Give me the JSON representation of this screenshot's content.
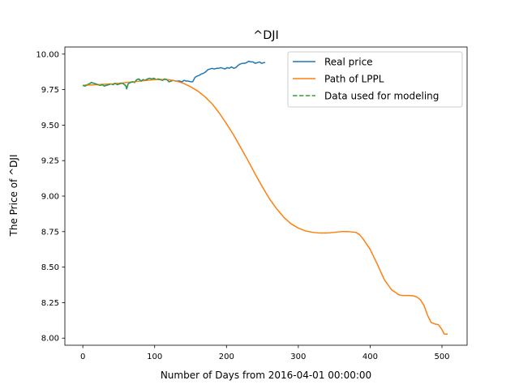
{
  "chart_data": {
    "type": "line",
    "title": "^DJI",
    "xlabel": "Number of Days from 2016-04-01 00:00:00",
    "ylabel": "The Price of ^DJI",
    "xlim": [
      -25,
      535
    ],
    "ylim": [
      7.95,
      10.05
    ],
    "x_ticks": [
      0,
      100,
      200,
      300,
      400,
      500
    ],
    "y_ticks": [
      8.0,
      8.25,
      8.5,
      8.75,
      9.0,
      9.25,
      9.5,
      9.75,
      10.0
    ],
    "x_tick_labels": [
      "0",
      "100",
      "200",
      "300",
      "400",
      "500"
    ],
    "y_tick_labels": [
      "8.00",
      "8.25",
      "8.50",
      "8.75",
      "9.00",
      "9.25",
      "9.50",
      "9.75",
      "10.00"
    ],
    "grid": false,
    "legend_position": "top-right",
    "series": [
      {
        "name": "Real price",
        "color": "#1f77b4",
        "style": "solid",
        "x": [
          0,
          3,
          6,
          9,
          12,
          15,
          18,
          21,
          24,
          27,
          30,
          33,
          36,
          39,
          42,
          45,
          48,
          51,
          54,
          57,
          60,
          61,
          63,
          66,
          69,
          72,
          75,
          78,
          81,
          84,
          87,
          90,
          93,
          96,
          99,
          102,
          105,
          108,
          111,
          114,
          117,
          120,
          123,
          126,
          129,
          132,
          135,
          138,
          141,
          144,
          147,
          150,
          153,
          156,
          159,
          162,
          165,
          168,
          171,
          174,
          177,
          180,
          183,
          186,
          189,
          192,
          195,
          198,
          201,
          204,
          207,
          210,
          213,
          216,
          219,
          222,
          225,
          228,
          231,
          234,
          237,
          240,
          243,
          246,
          249,
          252,
          254
        ],
        "values": [
          9.78,
          9.775,
          9.785,
          9.79,
          9.8,
          9.795,
          9.79,
          9.785,
          9.78,
          9.785,
          9.775,
          9.78,
          9.785,
          9.79,
          9.785,
          9.795,
          9.785,
          9.79,
          9.795,
          9.79,
          9.775,
          9.755,
          9.79,
          9.8,
          9.805,
          9.8,
          9.82,
          9.825,
          9.81,
          9.82,
          9.815,
          9.825,
          9.83,
          9.825,
          9.83,
          9.82,
          9.825,
          9.82,
          9.815,
          9.825,
          9.82,
          9.805,
          9.81,
          9.815,
          9.81,
          9.81,
          9.81,
          9.805,
          9.815,
          9.81,
          9.81,
          9.805,
          9.805,
          9.835,
          9.845,
          9.85,
          9.86,
          9.865,
          9.875,
          9.89,
          9.895,
          9.9,
          9.895,
          9.9,
          9.9,
          9.905,
          9.9,
          9.895,
          9.905,
          9.9,
          9.91,
          9.9,
          9.905,
          9.92,
          9.93,
          9.935,
          9.935,
          9.94,
          9.95,
          9.945,
          9.945,
          9.935,
          9.94,
          9.945,
          9.935,
          9.94,
          9.94
        ]
      },
      {
        "name": "Path of LPPL",
        "color": "#ff7f0e",
        "style": "solid",
        "x": [
          0,
          20,
          40,
          60,
          80,
          100,
          110,
          120,
          130,
          140,
          150,
          160,
          170,
          180,
          190,
          200,
          210,
          220,
          230,
          240,
          250,
          260,
          270,
          280,
          290,
          300,
          310,
          320,
          330,
          340,
          350,
          360,
          370,
          380,
          385,
          390,
          400,
          410,
          420,
          430,
          440,
          445,
          450,
          455,
          460,
          465,
          470,
          475,
          480,
          485,
          490,
          495,
          500,
          503,
          506,
          508
        ],
        "values": [
          9.78,
          9.785,
          9.79,
          9.8,
          9.81,
          9.82,
          9.822,
          9.82,
          9.81,
          9.795,
          9.77,
          9.74,
          9.7,
          9.65,
          9.585,
          9.51,
          9.43,
          9.34,
          9.25,
          9.155,
          9.065,
          8.98,
          8.91,
          8.85,
          8.805,
          8.775,
          8.755,
          8.745,
          8.74,
          8.74,
          8.745,
          8.75,
          8.75,
          8.745,
          8.73,
          8.7,
          8.625,
          8.52,
          8.41,
          8.34,
          8.305,
          8.3,
          8.3,
          8.3,
          8.298,
          8.29,
          8.27,
          8.23,
          8.16,
          8.11,
          8.1,
          8.095,
          8.06,
          8.03,
          8.028,
          8.03
        ]
      },
      {
        "name": "Data used for modeling",
        "color": "#2ca02c",
        "style": "dashed",
        "x": [
          0,
          3,
          6,
          9,
          12,
          15,
          18,
          21,
          24,
          27,
          30,
          33,
          36,
          39,
          42,
          45,
          48,
          51,
          54,
          57,
          60,
          61,
          63,
          66,
          69,
          72,
          75,
          78,
          81,
          84,
          87,
          90,
          93,
          96,
          99,
          102,
          105,
          108,
          111,
          114,
          117,
          120,
          123
        ],
        "values": [
          9.78,
          9.775,
          9.785,
          9.79,
          9.8,
          9.795,
          9.79,
          9.785,
          9.78,
          9.785,
          9.775,
          9.78,
          9.785,
          9.79,
          9.785,
          9.795,
          9.785,
          9.79,
          9.795,
          9.79,
          9.775,
          9.755,
          9.79,
          9.8,
          9.805,
          9.8,
          9.82,
          9.825,
          9.81,
          9.82,
          9.815,
          9.825,
          9.83,
          9.825,
          9.83,
          9.82,
          9.825,
          9.82,
          9.815,
          9.825,
          9.82,
          9.805,
          9.81
        ]
      }
    ]
  }
}
